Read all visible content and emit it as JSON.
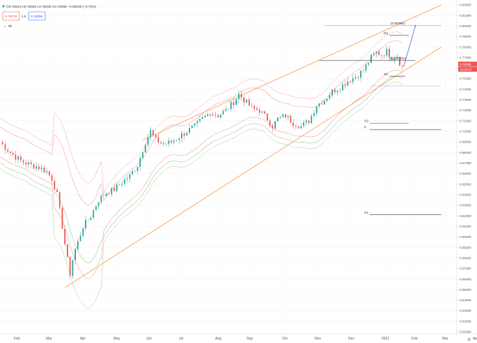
{
  "header": {
    "ohlc_text": "O0.76624 H0.76663 L0.76028 C0.76086 −0.00538 (−0.70%)",
    "interval": "1",
    "sell_price": "0.76079",
    "buy_price": "0.76094",
    "indicator_label": "5k"
  },
  "colors": {
    "up": "#26a69a",
    "down": "#ef5350",
    "channel": "#f7a35c",
    "bollinger": "#f4a0a0",
    "envelope": "#99cc99",
    "price_badge": "#ef5350",
    "target_line": "#3a55c8",
    "purple_line": "#d98cd9",
    "grid": "#f1f1f1"
  },
  "chart_data": {
    "type": "candlestick",
    "pair": "AUD/USD",
    "timeframe": "daily",
    "x_axis_labels": [
      "Feb",
      "Mar",
      "Apr",
      "May",
      "Jun",
      "Jul",
      "Aug",
      "Sep",
      "Oct",
      "Nov",
      "Dec",
      "2021",
      "Feb",
      "Mar",
      "Ap"
    ],
    "y_ticks": [
      0.82,
      0.81,
      0.8,
      0.79,
      0.78,
      0.77,
      0.76,
      0.75,
      0.74,
      0.73,
      0.72,
      0.71,
      0.7,
      0.69,
      0.68,
      0.67,
      0.66,
      0.65,
      0.64,
      0.63,
      0.62,
      0.61,
      0.6,
      0.59,
      0.58,
      0.57,
      0.56,
      0.55,
      0.54,
      0.53,
      0.52,
      0.51
    ],
    "ylim": [
      0.508,
      0.822
    ],
    "price_badges": [
      "0.76086",
      "13:30:57"
    ],
    "close_anchors": [
      {
        "d": 0,
        "p": 0.69
      },
      {
        "d": 8,
        "p": 0.68
      },
      {
        "d": 16,
        "p": 0.672
      },
      {
        "d": 24,
        "p": 0.668
      },
      {
        "d": 30,
        "p": 0.666
      },
      {
        "d": 36,
        "p": 0.662
      },
      {
        "d": 40,
        "p": 0.655
      },
      {
        "d": 44,
        "p": 0.64
      },
      {
        "d": 48,
        "p": 0.61
      },
      {
        "d": 51,
        "p": 0.585
      },
      {
        "d": 54,
        "p": 0.565
      },
      {
        "d": 57,
        "p": 0.585
      },
      {
        "d": 60,
        "p": 0.595
      },
      {
        "d": 64,
        "p": 0.61
      },
      {
        "d": 70,
        "p": 0.62
      },
      {
        "d": 76,
        "p": 0.635
      },
      {
        "d": 82,
        "p": 0.642
      },
      {
        "d": 88,
        "p": 0.645
      },
      {
        "d": 94,
        "p": 0.652
      },
      {
        "d": 100,
        "p": 0.658
      },
      {
        "d": 106,
        "p": 0.668
      },
      {
        "d": 112,
        "p": 0.69
      },
      {
        "d": 116,
        "p": 0.7
      },
      {
        "d": 120,
        "p": 0.692
      },
      {
        "d": 126,
        "p": 0.688
      },
      {
        "d": 132,
        "p": 0.69
      },
      {
        "d": 138,
        "p": 0.695
      },
      {
        "d": 144,
        "p": 0.7
      },
      {
        "d": 150,
        "p": 0.705
      },
      {
        "d": 156,
        "p": 0.712
      },
      {
        "d": 162,
        "p": 0.718
      },
      {
        "d": 168,
        "p": 0.715
      },
      {
        "d": 174,
        "p": 0.72
      },
      {
        "d": 180,
        "p": 0.728
      },
      {
        "d": 184,
        "p": 0.735
      },
      {
        "d": 188,
        "p": 0.73
      },
      {
        "d": 194,
        "p": 0.722
      },
      {
        "d": 200,
        "p": 0.72
      },
      {
        "d": 206,
        "p": 0.712
      },
      {
        "d": 210,
        "p": 0.705
      },
      {
        "d": 214,
        "p": 0.712
      },
      {
        "d": 220,
        "p": 0.715
      },
      {
        "d": 226,
        "p": 0.708
      },
      {
        "d": 232,
        "p": 0.705
      },
      {
        "d": 238,
        "p": 0.71
      },
      {
        "d": 244,
        "p": 0.725
      },
      {
        "d": 250,
        "p": 0.73
      },
      {
        "d": 256,
        "p": 0.738
      },
      {
        "d": 262,
        "p": 0.742
      },
      {
        "d": 268,
        "p": 0.748
      },
      {
        "d": 274,
        "p": 0.752
      },
      {
        "d": 280,
        "p": 0.758
      },
      {
        "d": 286,
        "p": 0.77
      },
      {
        "d": 290,
        "p": 0.775
      },
      {
        "d": 294,
        "p": 0.773
      },
      {
        "d": 298,
        "p": 0.776
      },
      {
        "d": 302,
        "p": 0.77
      },
      {
        "d": 306,
        "p": 0.772
      },
      {
        "d": 309,
        "p": 0.762
      },
      {
        "d": 311,
        "p": 0.761
      }
    ],
    "channel_lines": [
      {
        "name": "upper",
        "points": [
          [
            110,
            0.692
          ],
          [
            340,
            0.82
          ]
        ]
      },
      {
        "name": "lower",
        "points": [
          [
            50,
            0.552
          ],
          [
            340,
            0.78
          ]
        ]
      }
    ],
    "horizontal_levels": [
      {
        "label": "(0.80066)",
        "price": 0.8007,
        "from": 250,
        "to": 340
      },
      {
        "label": "R3",
        "price": 0.7911,
        "from": 300,
        "to": 315
      },
      {
        "label": "(0.74375%)",
        "price": 0.7673,
        "from": 246,
        "to": 320
      },
      {
        "label": "S2",
        "price": 0.7525,
        "from": 300,
        "to": 312
      },
      {
        "label": "",
        "price": 0.743,
        "from": 285,
        "to": 340
      },
      {
        "label": "S3",
        "price": 0.7078,
        "from": 285,
        "to": 315
      },
      {
        "label": "P",
        "price": 0.7018,
        "from": 285,
        "to": 340
      },
      {
        "label": "S1",
        "price": 0.6211,
        "from": 285,
        "to": 340
      }
    ],
    "target_projection": [
      [
        311,
        0.761
      ],
      [
        320,
        0.8
      ]
    ]
  }
}
